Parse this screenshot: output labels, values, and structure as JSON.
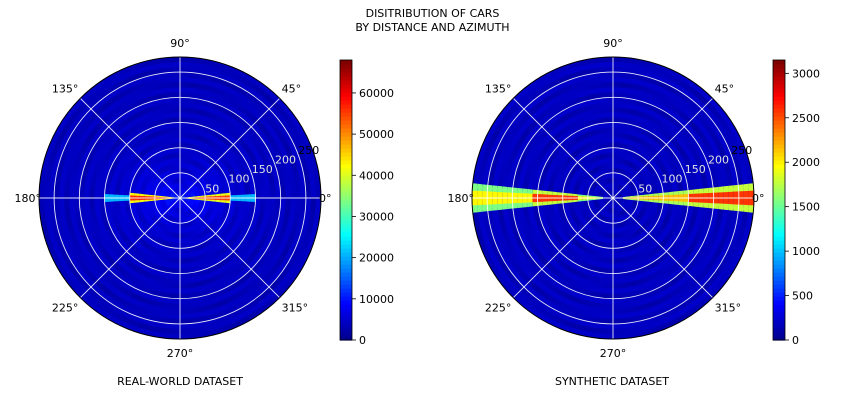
{
  "figure": {
    "title_line1": "DISITRIBUTION OF CARS",
    "title_line2": "BY DISTANCE AND AZIMUTH"
  },
  "colormap": [
    "#00008f",
    "#0000ff",
    "#0080ff",
    "#00ffff",
    "#80ff80",
    "#ffff00",
    "#ff8000",
    "#ff0000",
    "#800000"
  ],
  "chart_data": [
    {
      "type": "heatmap",
      "projection": "polar",
      "caption": "REAL-WORLD DATASET",
      "angle_tick_labels": [
        "0°",
        "45°",
        "90°",
        "135°",
        "180°",
        "225°",
        "270°",
        "315°"
      ],
      "angle_ticks_deg": [
        0,
        45,
        90,
        135,
        180,
        225,
        270,
        315
      ],
      "radial_ticks": [
        50,
        100,
        150,
        200,
        250
      ],
      "rmax": 280,
      "grid": true,
      "colorbar": {
        "min": 0,
        "max": 68000,
        "ticks": [
          0,
          10000,
          20000,
          30000,
          40000,
          50000,
          60000
        ]
      },
      "hotspots": [
        {
          "angle_deg": 0,
          "angle_width_deg": 6,
          "r_range": [
            15,
            95
          ],
          "peak": 62000
        },
        {
          "angle_deg": 180,
          "angle_width_deg": 6,
          "r_range": [
            15,
            95
          ],
          "peak": 64000
        },
        {
          "angle_deg": 0,
          "angle_width_deg": 4,
          "r_range": [
            95,
            150
          ],
          "peak": 25000
        },
        {
          "angle_deg": 180,
          "angle_width_deg": 4,
          "r_range": [
            95,
            150
          ],
          "peak": 25000
        }
      ],
      "background_level": 3000
    },
    {
      "type": "heatmap",
      "projection": "polar",
      "caption": "SYNTHETIC DATASET",
      "angle_tick_labels": [
        "0°",
        "45°",
        "90°",
        "135°",
        "180°",
        "225°",
        "270°",
        "315°"
      ],
      "angle_ticks_deg": [
        0,
        45,
        90,
        135,
        180,
        225,
        270,
        315
      ],
      "radial_ticks": [
        50,
        100,
        150,
        200,
        250
      ],
      "rmax": 280,
      "grid": true,
      "colorbar": {
        "min": 0,
        "max": 3150,
        "ticks": [
          0,
          500,
          1000,
          1500,
          2000,
          2500,
          3000
        ]
      },
      "hotspots": [
        {
          "angle_deg": 0,
          "angle_width_deg": 7,
          "r_range": [
            20,
            280
          ],
          "peak": 2400
        },
        {
          "angle_deg": 180,
          "angle_width_deg": 7,
          "r_range": [
            20,
            280
          ],
          "peak": 2200
        },
        {
          "angle_deg": 0,
          "angle_width_deg": 5,
          "r_range": [
            150,
            280
          ],
          "peak": 3000
        },
        {
          "angle_deg": 180,
          "angle_width_deg": 5,
          "r_range": [
            70,
            160
          ],
          "peak": 3000
        }
      ],
      "background_level": 150
    }
  ]
}
